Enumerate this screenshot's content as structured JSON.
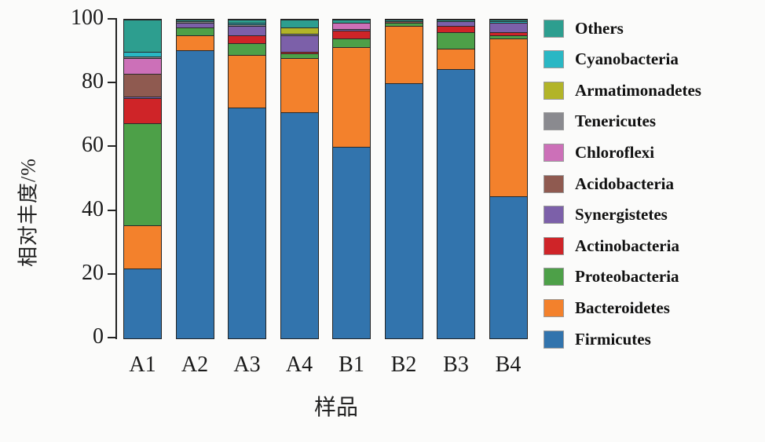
{
  "figure": {
    "background": "#fbfbfa",
    "axis_color": "#242424",
    "outline_color": "#2a2a2a"
  },
  "chart_data": {
    "type": "bar",
    "stacked": true,
    "orientation": "vertical",
    "xlabel": "样品",
    "ylabel": "相对丰度/%",
    "ylim": [
      0,
      100
    ],
    "yticks": [
      0,
      20,
      40,
      60,
      80,
      100
    ],
    "grid": false,
    "legend_position": "right",
    "categories": [
      "A1",
      "A2",
      "A3",
      "A4",
      "B1",
      "B2",
      "B3",
      "B4"
    ],
    "series": [
      {
        "name": "Firmicutes",
        "color": "#3274ad",
        "values": [
          22,
          90.5,
          72.5,
          71,
          60,
          80,
          84.5,
          44.5
        ]
      },
      {
        "name": "Bacteroidetes",
        "color": "#f3812c",
        "values": [
          13.5,
          4.5,
          16.5,
          17,
          31.5,
          18,
          6.5,
          49.5
        ]
      },
      {
        "name": "Proteobacteria",
        "color": "#4da048",
        "values": [
          32,
          2.5,
          3.5,
          1.5,
          2.5,
          1,
          5,
          1
        ]
      },
      {
        "name": "Actinobacteria",
        "color": "#cf2428",
        "values": [
          8,
          0,
          2.5,
          0.5,
          2.5,
          0,
          2,
          1
        ]
      },
      {
        "name": "Synergistetes",
        "color": "#7c60a9",
        "values": [
          0.5,
          1.5,
          3,
          5,
          0.5,
          0,
          1.5,
          3
        ]
      },
      {
        "name": "Acidobacteria",
        "color": "#8f5a50",
        "values": [
          7,
          0,
          0,
          0,
          0,
          0.5,
          0,
          0
        ]
      },
      {
        "name": "Chloroflexi",
        "color": "#cc70b8",
        "values": [
          5,
          0,
          0,
          0,
          2,
          0,
          0,
          0
        ]
      },
      {
        "name": "Tenericutes",
        "color": "#8a8a8f",
        "values": [
          0.5,
          0.5,
          0.5,
          0.5,
          0,
          0,
          0,
          0
        ]
      },
      {
        "name": "Armatimonadetes",
        "color": "#b2b428",
        "values": [
          0,
          0,
          0,
          2,
          0,
          0,
          0,
          0
        ]
      },
      {
        "name": "Cyanobacteria",
        "color": "#2ab7c4",
        "values": [
          1.5,
          0,
          0.5,
          0,
          0,
          0,
          0,
          0.5
        ]
      },
      {
        "name": "Others",
        "color": "#2d9e8f",
        "values": [
          10,
          0.5,
          1,
          2.5,
          1,
          0.5,
          0.5,
          0.5
        ]
      }
    ],
    "legend_order_top_to_bottom": [
      "Others",
      "Cyanobacteria",
      "Armatimonadetes",
      "Tenericutes",
      "Chloroflexi",
      "Acidobacteria",
      "Synergistetes",
      "Actinobacteria",
      "Proteobacteria",
      "Bacteroidetes",
      "Firmicutes"
    ]
  }
}
